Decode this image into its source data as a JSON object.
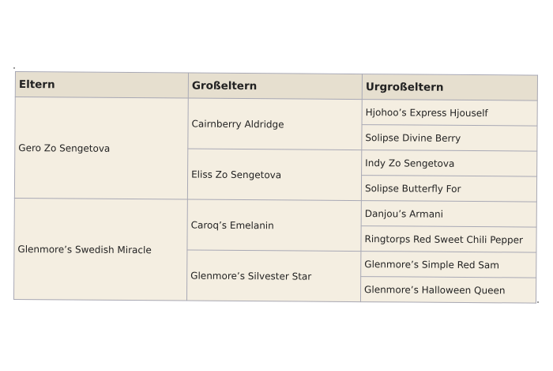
{
  "headers": [
    "Eltern",
    "Großeltern",
    "Urgroßeltern"
  ],
  "parents": [
    {
      "name": "Gero Zo Sengetova",
      "grandparents": [
        {
          "name": "Cairnberry Aldridge",
          "great": [
            "Hjohoo’s Express Hjouself",
            "Solipse Divine Berry"
          ]
        },
        {
          "name": "Eliss Zo Sengetova",
          "great": [
            "Indy Zo Sengetova",
            "Solipse Butterfly For"
          ]
        }
      ]
    },
    {
      "name": "Glenmore’s Swedish Miracle",
      "grandparents": [
        {
          "name": "Caroq’s Emelanin",
          "great": [
            "Danjou’s Armani",
            "Ringtorps Red Sweet Chili Pepper"
          ]
        },
        {
          "name": "Glenmore’s Silvester Star",
          "great": [
            "Glenmore’s Simple Red Sam",
            "Glenmore’s Halloween Queen"
          ]
        }
      ]
    }
  ]
}
